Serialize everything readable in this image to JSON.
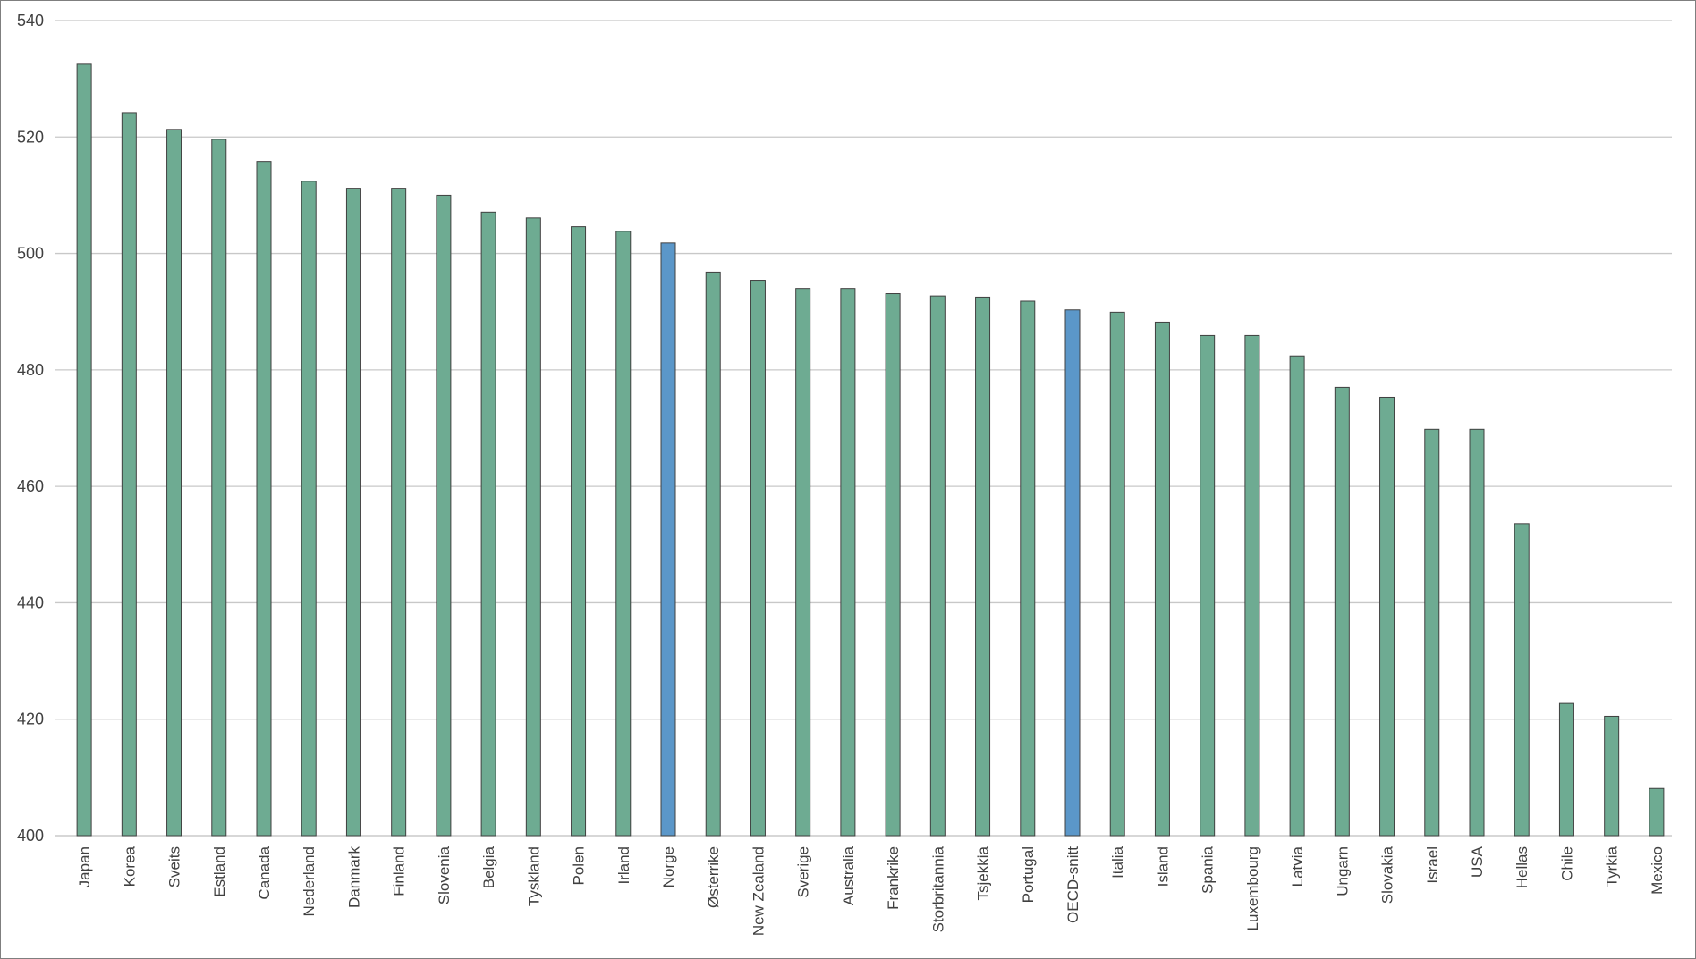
{
  "chart_data": {
    "type": "bar",
    "title": "",
    "xlabel": "",
    "ylabel": "",
    "ylim": [
      400,
      540
    ],
    "yticks": [
      400,
      420,
      440,
      460,
      480,
      500,
      520,
      540
    ],
    "grid": true,
    "legend": "none",
    "colors": {
      "default": "#6eab92",
      "highlight": "#5b97c9"
    },
    "highlighted_categories": [
      "Norge",
      "OECD-snitt"
    ],
    "categories": [
      "Japan",
      "Korea",
      "Sveits",
      "Estland",
      "Canada",
      "Nederland",
      "Danmark",
      "Finland",
      "Slovenia",
      "Belgia",
      "Tyskland",
      "Polen",
      "Irland",
      "Norge",
      "Østerrike",
      "New Zealand",
      "Sverige",
      "Australia",
      "Frankrike",
      "Storbritannia",
      "Tsjekkia",
      "Portugal",
      "OECD-snitt",
      "Italia",
      "Island",
      "Spania",
      "Luxembourg",
      "Latvia",
      "Ungarn",
      "Slovakia",
      "Israel",
      "USA",
      "Hellas",
      "Chile",
      "Tyrkia",
      "Mexico"
    ],
    "values": [
      532.5,
      524.2,
      521.3,
      519.6,
      515.8,
      512.4,
      511.2,
      511.2,
      510,
      507.1,
      506.1,
      504.6,
      503.8,
      501.8,
      496.8,
      495.4,
      494,
      494,
      493.1,
      492.7,
      492.5,
      491.8,
      490.3,
      489.9,
      488.2,
      485.9,
      485.9,
      482.4,
      477,
      475.3,
      469.8,
      469.8,
      453.6,
      422.7,
      420.5,
      408.1
    ]
  }
}
